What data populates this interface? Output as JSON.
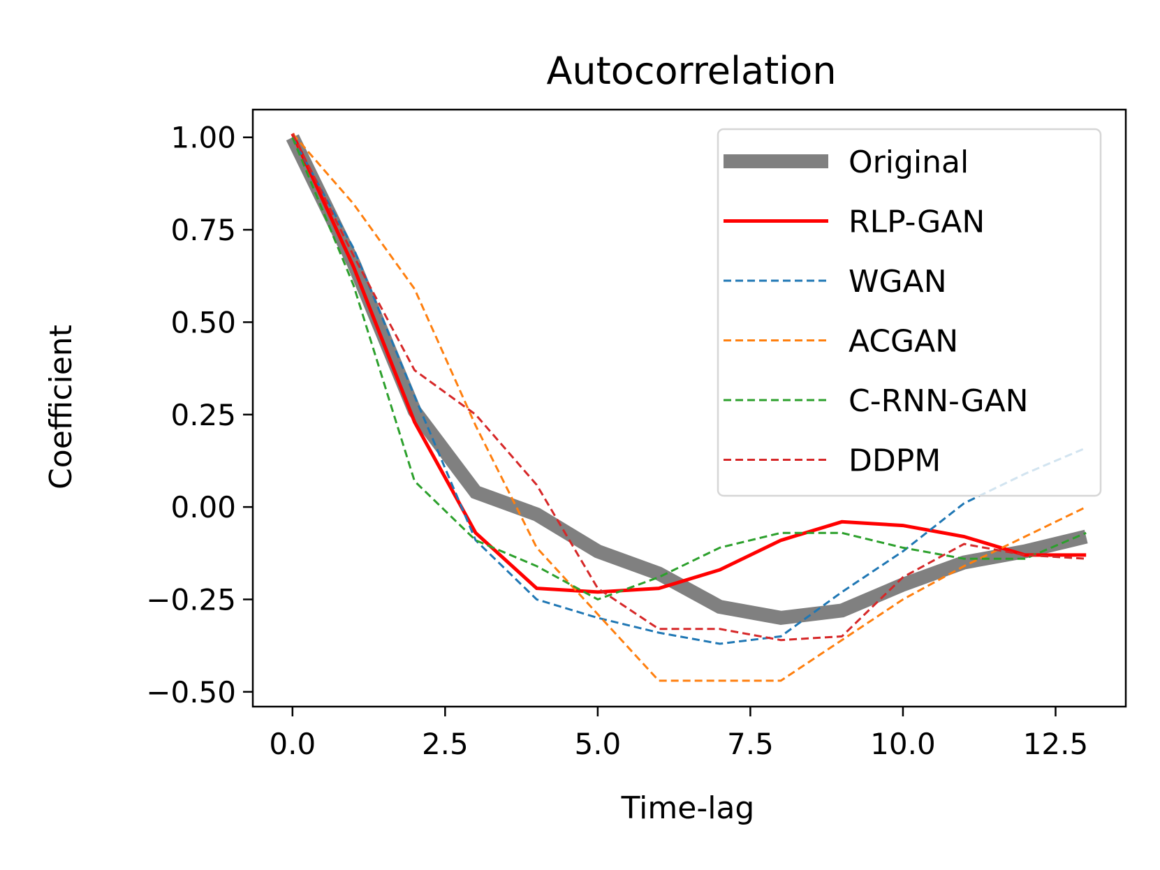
{
  "chart_data": {
    "type": "line",
    "title": "Autocorrelation",
    "xlabel": "Time-lag",
    "ylabel": "Coefficient",
    "xlim": [
      -0.65,
      13.65
    ],
    "ylim": [
      -0.54,
      1.075
    ],
    "xticks": [
      0.0,
      2.5,
      5.0,
      7.5,
      10.0,
      12.5
    ],
    "xtick_labels": [
      "0.0",
      "2.5",
      "5.0",
      "7.5",
      "10.0",
      "12.5"
    ],
    "yticks": [
      1.0,
      0.75,
      0.5,
      0.25,
      0.0,
      -0.25,
      -0.5
    ],
    "ytick_labels": [
      "1.00",
      "0.75",
      "0.50",
      "0.25",
      "0.00",
      "−0.25",
      "−0.50"
    ],
    "legend_position": "upper-right",
    "x": [
      0,
      1,
      2,
      3,
      4,
      5,
      6,
      7,
      8,
      9,
      10,
      11,
      12,
      13
    ],
    "series": [
      {
        "name": "Original",
        "color": "#808080",
        "style": "solid-thick",
        "values": [
          1.0,
          0.66,
          0.26,
          0.04,
          -0.02,
          -0.12,
          -0.18,
          -0.27,
          -0.3,
          -0.28,
          -0.21,
          -0.15,
          -0.12,
          -0.08
        ]
      },
      {
        "name": "RLP-GAN",
        "color": "#ff0000",
        "style": "solid",
        "values": [
          1.01,
          0.65,
          0.23,
          -0.07,
          -0.22,
          -0.23,
          -0.22,
          -0.17,
          -0.09,
          -0.04,
          -0.05,
          -0.08,
          -0.13,
          -0.13
        ]
      },
      {
        "name": "WGAN",
        "color": "#1f77b4",
        "style": "dashed",
        "values": [
          1.0,
          0.7,
          0.3,
          -0.09,
          -0.25,
          -0.3,
          -0.34,
          -0.37,
          -0.35,
          -0.23,
          -0.12,
          0.01,
          0.09,
          0.16
        ]
      },
      {
        "name": "ACGAN",
        "color": "#ff7f0e",
        "style": "dashed",
        "values": [
          1.01,
          0.82,
          0.59,
          0.22,
          -0.11,
          -0.29,
          -0.47,
          -0.47,
          -0.47,
          -0.36,
          -0.25,
          -0.16,
          -0.08,
          0.0
        ]
      },
      {
        "name": "C-RNN-GAN",
        "color": "#2ca02c",
        "style": "dashed",
        "values": [
          1.0,
          0.6,
          0.07,
          -0.09,
          -0.16,
          -0.25,
          -0.19,
          -0.11,
          -0.07,
          -0.07,
          -0.11,
          -0.14,
          -0.14,
          -0.07
        ]
      },
      {
        "name": "DDPM",
        "color": "#d62728",
        "style": "dashed",
        "values": [
          1.01,
          0.68,
          0.37,
          0.25,
          0.06,
          -0.22,
          -0.33,
          -0.33,
          -0.36,
          -0.35,
          -0.19,
          -0.1,
          -0.13,
          -0.14
        ]
      }
    ]
  }
}
